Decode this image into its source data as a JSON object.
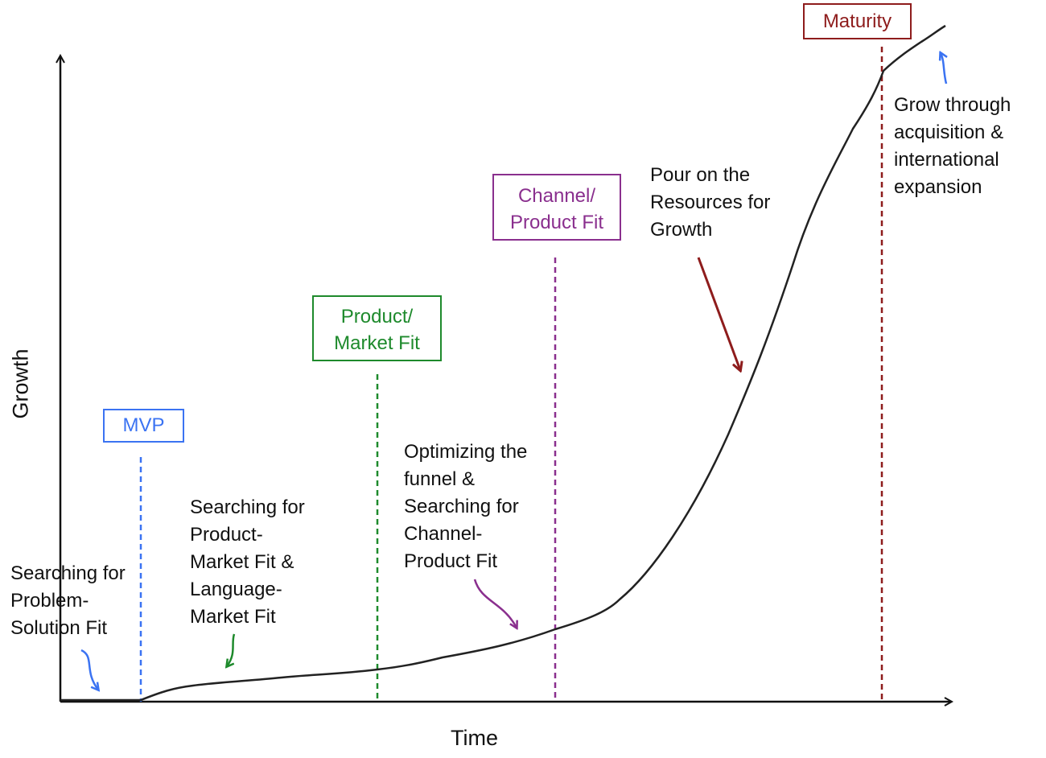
{
  "axes": {
    "x_label": "Time",
    "y_label": "Growth"
  },
  "colors": {
    "mvp": "#3b73f2",
    "product_market": "#1e8a2c",
    "channel_product": "#8a2f8e",
    "maturity": "#8e1c1c",
    "curve": "#222222",
    "axis": "#111111"
  },
  "milestones": [
    {
      "key": "mvp",
      "lines": [
        "MVP"
      ]
    },
    {
      "key": "product_market",
      "lines": [
        "Product/",
        "Market Fit"
      ]
    },
    {
      "key": "channel_product",
      "lines": [
        "Channel/",
        "Product Fit"
      ]
    },
    {
      "key": "maturity",
      "lines": [
        "Maturity"
      ]
    }
  ],
  "annotations": [
    {
      "key": "problem_solution",
      "lines": [
        "Searching for",
        "Problem-",
        "Solution Fit"
      ]
    },
    {
      "key": "product_market_search",
      "lines": [
        "Searching for",
        "Product-",
        "Market Fit &",
        "Language-",
        "Market Fit"
      ]
    },
    {
      "key": "funnel",
      "lines": [
        "Optimizing the",
        "funnel &",
        "Searching for",
        "Channel-",
        "Product Fit"
      ]
    },
    {
      "key": "resources",
      "lines": [
        "Pour on the",
        "Resources for",
        "Growth"
      ]
    },
    {
      "key": "acquisition",
      "lines": [
        "Grow through",
        "acquisition &",
        "international",
        "expansion"
      ]
    }
  ]
}
